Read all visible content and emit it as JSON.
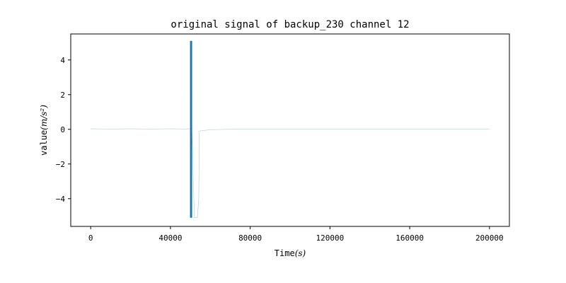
{
  "chart_data": {
    "type": "line",
    "title": "original signal of backup_230 channel 12",
    "xlabel": "Time",
    "xlabel_unit": "(s)",
    "ylabel": "value",
    "ylabel_unit": "(m/s²)",
    "xlim": [
      -10000,
      210000
    ],
    "ylim": [
      -5.6,
      5.5
    ],
    "xticks": [
      0,
      40000,
      80000,
      120000,
      160000,
      200000
    ],
    "xtick_labels": [
      "0",
      "40000",
      "80000",
      "120000",
      "160000",
      "200000"
    ],
    "yticks": [
      -4,
      -2,
      0,
      2,
      4
    ],
    "ytick_labels": [
      "−4",
      "−2",
      "0",
      "2",
      "4"
    ],
    "grid": false,
    "legend": "none",
    "colors": {
      "series": "#1f77b4",
      "axes": "#000000"
    },
    "series": [
      {
        "values": [
          [
            0,
            0.03
          ],
          [
            10000,
            0.02
          ],
          [
            20000,
            0.03
          ],
          [
            30000,
            0.02
          ],
          [
            40000,
            0.03
          ],
          [
            49500,
            0.02
          ],
          [
            50000,
            0.1
          ],
          [
            50100,
            5.1
          ],
          [
            50200,
            -5.1
          ],
          [
            50300,
            5.0
          ],
          [
            50400,
            -5.0
          ],
          [
            50500,
            5.1
          ],
          [
            50600,
            -5.1
          ],
          [
            50700,
            0.3
          ],
          [
            52000,
            -5.1
          ],
          [
            53500,
            -5.1
          ],
          [
            54200,
            -4.0
          ],
          [
            54500,
            -0.1
          ],
          [
            56000,
            -0.08
          ],
          [
            60000,
            -0.02
          ],
          [
            70000,
            0.0
          ],
          [
            100000,
            0.01
          ],
          [
            150000,
            0.01
          ],
          [
            200000,
            0.01
          ]
        ]
      }
    ]
  }
}
